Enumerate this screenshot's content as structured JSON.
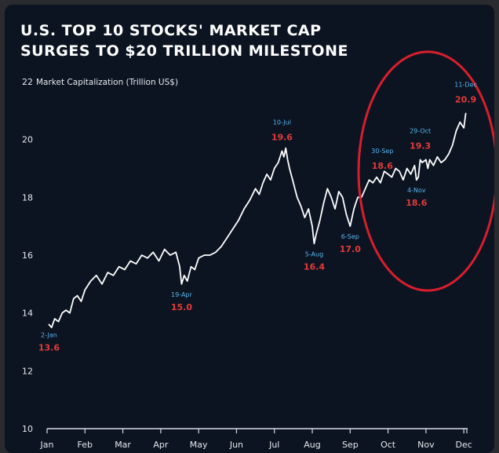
{
  "chart_data": {
    "type": "line",
    "title": "U.S. TOP 10 STOCKS' MARKET CAP",
    "subtitle": "SURGES TO $20 TRILLION MILESTONE",
    "ylabel": "Market Capitalization (Trillion US$)",
    "ylim": [
      10,
      22
    ],
    "yticks": [
      "10",
      "12",
      "14",
      "16",
      "18",
      "20",
      "22"
    ],
    "categories": [
      "Jan",
      "Feb",
      "Mar",
      "Apr",
      "May",
      "Jun",
      "Jul",
      "Aug",
      "Sep",
      "Oct",
      "Nov",
      "Dec"
    ],
    "grid": false,
    "series": [
      {
        "x": [
          0.05,
          0.12,
          0.2,
          0.3,
          0.4,
          0.5,
          0.6,
          0.7,
          0.8,
          0.9,
          1.0,
          1.15,
          1.3,
          1.45,
          1.6,
          1.75,
          1.9,
          2.05,
          2.2,
          2.35,
          2.5,
          2.65,
          2.8,
          2.95,
          3.1,
          3.25,
          3.4,
          3.5,
          3.55,
          3.62,
          3.7,
          3.8,
          3.9,
          4.0,
          4.15,
          4.3,
          4.45,
          4.6,
          4.75,
          4.9,
          5.05,
          5.2,
          5.35,
          5.5,
          5.6,
          5.7,
          5.8,
          5.9,
          6.0,
          6.1,
          6.2,
          6.25,
          6.3,
          6.35,
          6.4,
          6.5,
          6.6,
          6.7,
          6.8,
          6.9,
          7.0,
          7.05,
          7.1,
          7.2,
          7.3,
          7.4,
          7.5,
          7.6,
          7.7,
          7.8,
          7.9,
          8.0,
          8.05,
          8.1,
          8.15,
          8.2,
          8.3,
          8.4,
          8.5,
          8.6,
          8.7,
          8.8,
          8.9,
          9.0,
          9.1,
          9.2,
          9.3,
          9.4,
          9.5,
          9.6,
          9.7,
          9.75,
          9.8,
          9.85,
          9.9,
          10.0,
          10.05,
          10.1,
          10.2,
          10.3,
          10.4,
          10.5,
          10.6,
          10.7,
          10.8,
          10.9,
          11.0,
          11.05
        ],
        "values": [
          13.6,
          13.5,
          13.8,
          13.7,
          14.0,
          14.1,
          14.0,
          14.5,
          14.6,
          14.4,
          14.8,
          15.1,
          15.3,
          15.0,
          15.4,
          15.3,
          15.6,
          15.5,
          15.8,
          15.7,
          16.0,
          15.9,
          16.1,
          15.8,
          16.2,
          16.0,
          16.1,
          15.6,
          15.0,
          15.3,
          15.1,
          15.6,
          15.5,
          15.9,
          16.0,
          16.0,
          16.1,
          16.3,
          16.6,
          16.9,
          17.2,
          17.6,
          17.9,
          18.3,
          18.1,
          18.5,
          18.8,
          18.6,
          19.0,
          19.2,
          19.6,
          19.4,
          19.7,
          19.3,
          19.0,
          18.5,
          18.0,
          17.7,
          17.3,
          17.6,
          17.0,
          16.4,
          16.7,
          17.2,
          17.8,
          18.3,
          18.0,
          17.6,
          18.2,
          18.0,
          17.4,
          17.0,
          17.3,
          17.6,
          17.8,
          18.0,
          18.0,
          18.3,
          18.6,
          18.5,
          18.7,
          18.5,
          18.9,
          18.8,
          18.7,
          19.0,
          18.9,
          18.6,
          19.0,
          18.8,
          19.1,
          18.6,
          18.7,
          19.3,
          19.2,
          19.3,
          19.0,
          19.3,
          19.1,
          19.4,
          19.2,
          19.3,
          19.5,
          19.8,
          20.3,
          20.6,
          20.4,
          20.9
        ]
      }
    ],
    "annotations": [
      {
        "date": "2-Jan",
        "value": "13.6",
        "x": 0.05,
        "y": 13.6,
        "side": "below"
      },
      {
        "date": "19-Apr",
        "value": "15.0",
        "x": 3.55,
        "y": 15.0,
        "side": "below"
      },
      {
        "date": "10-Jul",
        "value": "19.6",
        "x": 6.2,
        "y": 19.6,
        "side": "above"
      },
      {
        "date": "5-Aug",
        "value": "16.4",
        "x": 7.05,
        "y": 16.4,
        "side": "below"
      },
      {
        "date": "6-Sep",
        "value": "17.0",
        "x": 8.0,
        "y": 17.0,
        "side": "below"
      },
      {
        "date": "30-Sep",
        "value": "18.6",
        "x": 8.85,
        "y": 18.6,
        "side": "above"
      },
      {
        "date": "29-Oct",
        "value": "19.3",
        "x": 9.85,
        "y": 19.3,
        "side": "above"
      },
      {
        "date": "4-Nov",
        "value": "18.6",
        "x": 9.75,
        "y": 18.6,
        "side": "below"
      },
      {
        "date": "11-Dec",
        "value": "20.9",
        "x": 11.05,
        "y": 20.9,
        "side": "above"
      }
    ],
    "line_color": "#ffffff",
    "highlight_color": "#d81e2b",
    "date_label_color": "#58b6ec",
    "value_label_color": "#e23a3a"
  }
}
